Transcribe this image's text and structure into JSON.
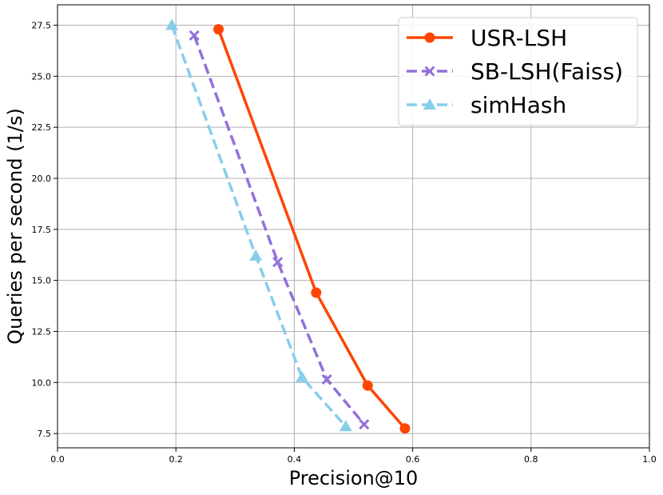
{
  "chart_data": {
    "type": "line",
    "title": "",
    "xlabel": "Precision@10",
    "ylabel": "Queries per second (1/s)",
    "xlim": [
      0.0,
      1.0
    ],
    "ylim": [
      6.8,
      28.5
    ],
    "xticks": [
      0.0,
      0.2,
      0.4,
      0.6,
      0.8,
      1.0
    ],
    "xtick_labels": [
      "0.0",
      "0.2",
      "0.4",
      "0.6",
      "0.8",
      "1.0"
    ],
    "yticks": [
      7.5,
      10.0,
      12.5,
      15.0,
      17.5,
      20.0,
      22.5,
      25.0,
      27.5
    ],
    "ytick_labels": [
      "7.5",
      "10.0",
      "12.5",
      "15.0",
      "17.5",
      "20.0",
      "22.5",
      "25.0",
      "27.5"
    ],
    "grid": true,
    "legend_position": "top-right",
    "series": [
      {
        "name": "USR-LSH",
        "color": "#ff4500",
        "marker": "circle",
        "linestyle": "solid",
        "x": [
          0.272,
          0.437,
          0.524,
          0.587
        ],
        "y": [
          27.3,
          14.4,
          9.85,
          7.75
        ]
      },
      {
        "name": "SB-LSH(Faiss)",
        "color": "#9370db",
        "marker": "x",
        "linestyle": "dashed",
        "x": [
          0.231,
          0.372,
          0.455,
          0.518
        ],
        "y": [
          27.0,
          15.9,
          10.15,
          7.95
        ]
      },
      {
        "name": "simHash",
        "color": "#87ceeb",
        "marker": "triangle",
        "linestyle": "dashed",
        "x": [
          0.193,
          0.335,
          0.413,
          0.487
        ],
        "y": [
          27.5,
          16.2,
          10.25,
          7.85
        ]
      }
    ]
  }
}
